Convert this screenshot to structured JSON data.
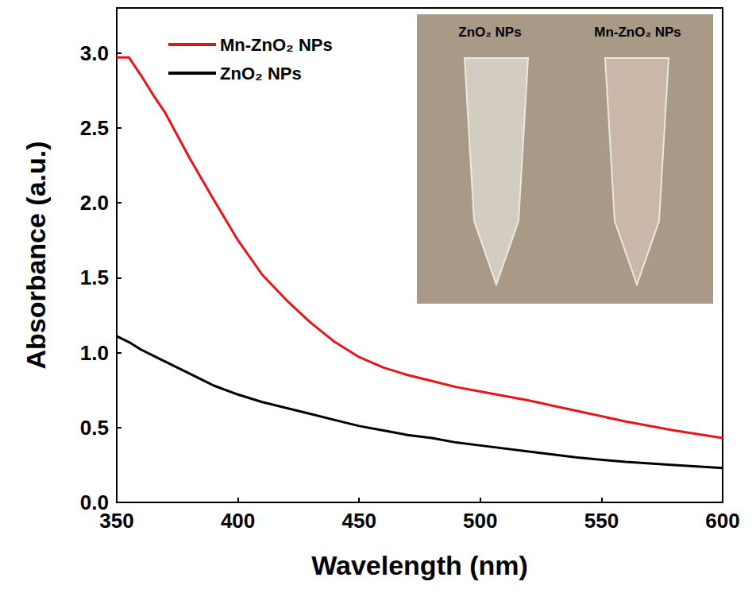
{
  "chart_data": {
    "type": "line",
    "x_label": "Wavelength (nm)",
    "y_label": "Absorbance (a.u.)",
    "x": [
      350,
      355,
      360,
      365,
      370,
      380,
      390,
      400,
      410,
      420,
      430,
      440,
      450,
      460,
      470,
      480,
      490,
      500,
      520,
      540,
      560,
      580,
      600
    ],
    "series": [
      {
        "name": "Mn-ZnO₂ NPs",
        "color": "#e8141c",
        "values": [
          2.97,
          2.97,
          2.85,
          2.72,
          2.6,
          2.3,
          2.02,
          1.75,
          1.52,
          1.35,
          1.2,
          1.07,
          0.97,
          0.9,
          0.85,
          0.81,
          0.77,
          0.74,
          0.68,
          0.61,
          0.54,
          0.48,
          0.43
        ]
      },
      {
        "name": "ZnO₂ NPs",
        "color": "#000000",
        "values": [
          1.11,
          1.07,
          1.02,
          0.98,
          0.94,
          0.86,
          0.78,
          0.72,
          0.67,
          0.63,
          0.59,
          0.55,
          0.51,
          0.48,
          0.45,
          0.43,
          0.4,
          0.38,
          0.34,
          0.3,
          0.27,
          0.25,
          0.23
        ]
      }
    ],
    "xlim": [
      350,
      600
    ],
    "xticks": [
      350,
      400,
      450,
      500,
      550,
      600
    ],
    "ylim": [
      0,
      3.3
    ],
    "yticks": [
      {
        "value": 0,
        "label": "0.0"
      },
      0.5,
      {
        "value": 1,
        "label": "1.0"
      },
      1.5,
      {
        "value": 2,
        "label": "2.0"
      },
      2.5,
      {
        "value": 3,
        "label": "3.0"
      }
    ],
    "grid": false,
    "legend": "upper left",
    "annotations": [
      "ZnO₂ NPs",
      "Mn-ZnO₂ NPs"
    ]
  }
}
